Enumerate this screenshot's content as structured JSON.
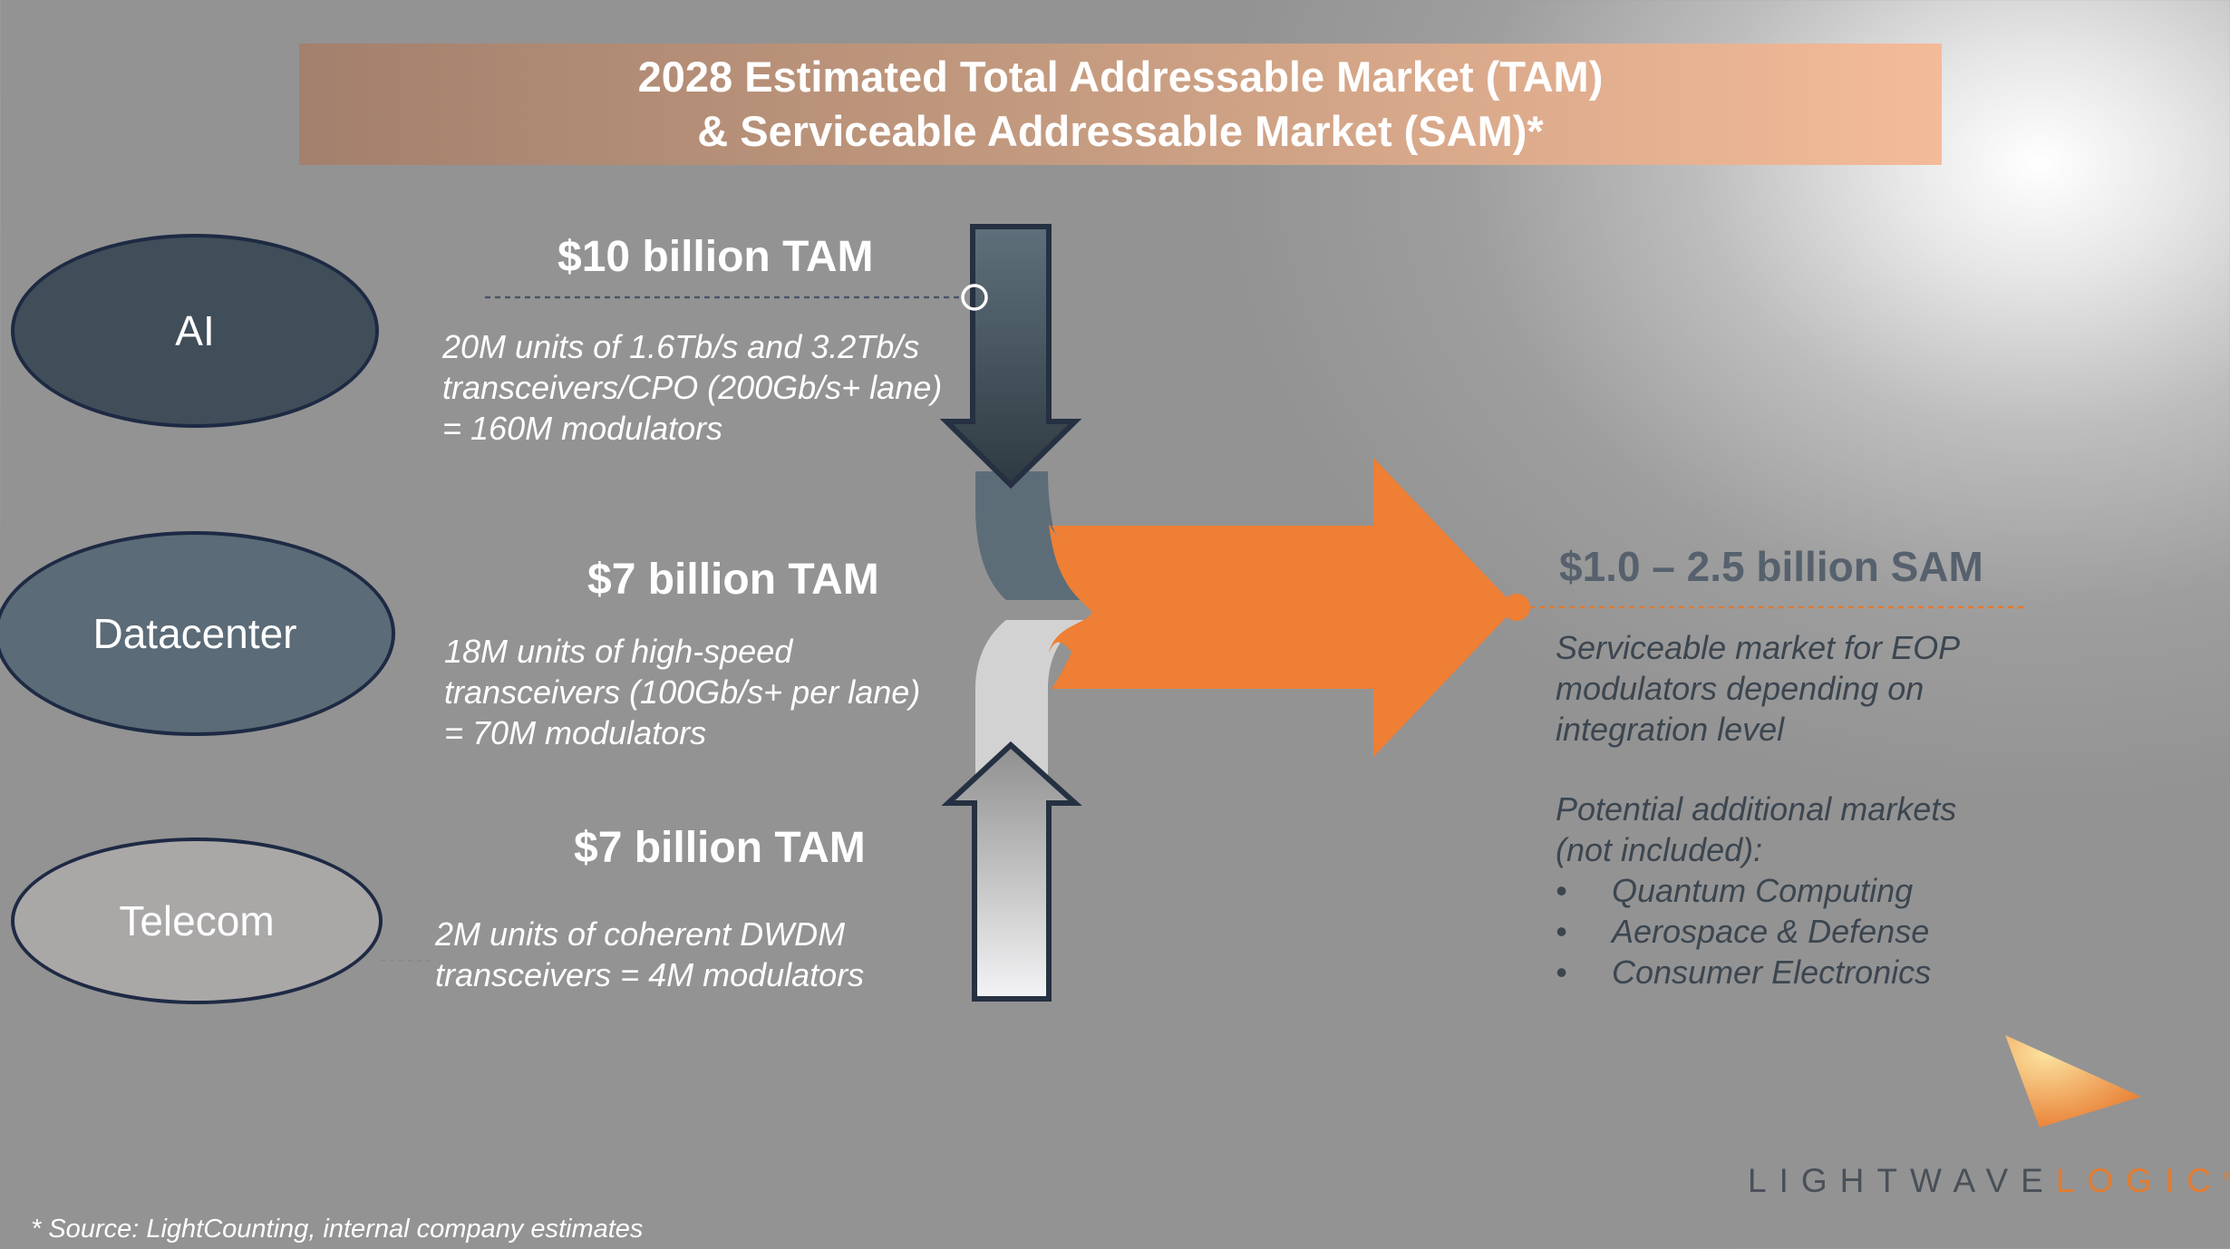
{
  "title": {
    "line1": "2028 Estimated Total Addressable Market (TAM)",
    "line2": "& Serviceable Addressable Market (SAM)*"
  },
  "segments": [
    {
      "name": "AI",
      "tam": "$10 billion TAM",
      "desc": [
        "20M units of 1.6Tb/s and 3.2Tb/s",
        "transceivers/CPO (200Gb/s+ lane)",
        "= 160M modulators"
      ],
      "color": "#404e59"
    },
    {
      "name": "Datacenter",
      "tam": "$7 billion TAM",
      "desc": [
        "18M units of high-speed",
        "transceivers (100Gb/s+ per lane)",
        "= 70M modulators"
      ],
      "color": "#5b6b77"
    },
    {
      "name": "Telecom",
      "tam": "$7 billion TAM",
      "desc": [
        "2M units of coherent DWDM",
        "transceivers = 4M modulators"
      ],
      "color": "#aaa7a7"
    }
  ],
  "sam": {
    "title": "$1.0 – 2.5 billion SAM",
    "desc": [
      "Serviceable market for EOP",
      "modulators depending on",
      "integration level"
    ],
    "additional_heading": [
      "Potential additional markets",
      "(not included):"
    ],
    "additional": [
      "Quantum Computing",
      "Aerospace & Defense",
      "Consumer Electronics"
    ],
    "bullet": "•"
  },
  "footnote": "* Source: LightCounting, internal company estimates",
  "logo": {
    "part1": "LIGHTWAVE",
    "part2": "LOGIC",
    "mark": "®"
  },
  "colors": {
    "orange": "#ee7f34",
    "banner_start": "#a3806d",
    "banner_end": "#f4bb99",
    "ellipse_border": "#1e2a44"
  }
}
